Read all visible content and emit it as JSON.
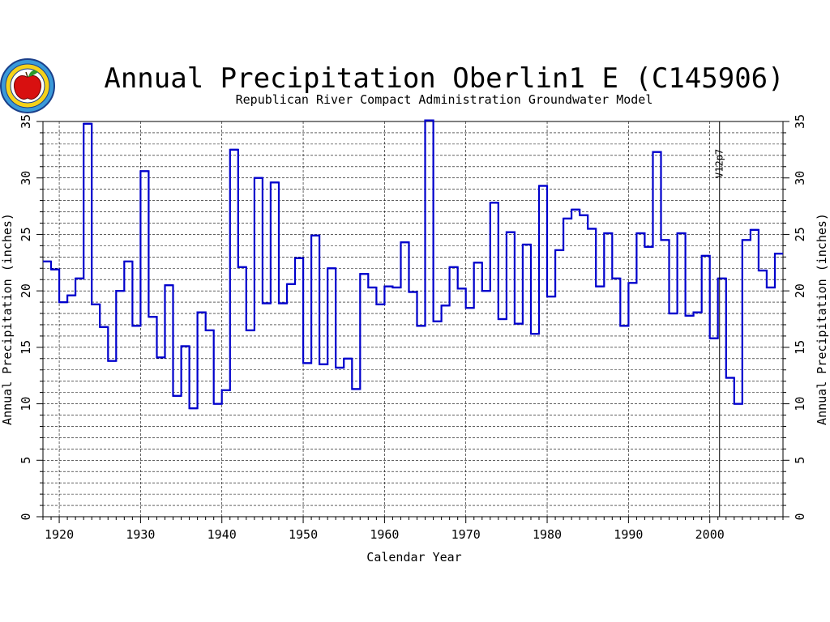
{
  "chart_data": {
    "type": "line",
    "step": true,
    "title": "Annual Precipitation Oberlin1 E (C145906)",
    "subtitle": "Republican River Compact Administration Groundwater Model",
    "xlabel": "Calendar Year",
    "ylabel": "Annual Precipitation (inches)",
    "xlim": [
      1918,
      2009
    ],
    "ylim": [
      0,
      35
    ],
    "x_ticks": [
      1920,
      1930,
      1940,
      1950,
      1960,
      1970,
      1980,
      1990,
      2000
    ],
    "y_ticks": [
      0,
      5,
      10,
      15,
      20,
      25,
      30,
      35
    ],
    "grid": true,
    "series_color": "#0000cc",
    "annotation": {
      "label": "V12p7",
      "x": 2001
    },
    "years": [
      1918,
      1919,
      1920,
      1921,
      1922,
      1923,
      1924,
      1925,
      1926,
      1927,
      1928,
      1929,
      1930,
      1931,
      1932,
      1933,
      1934,
      1935,
      1936,
      1937,
      1938,
      1939,
      1940,
      1941,
      1942,
      1943,
      1944,
      1945,
      1946,
      1947,
      1948,
      1949,
      1950,
      1951,
      1952,
      1953,
      1954,
      1955,
      1956,
      1957,
      1958,
      1959,
      1960,
      1961,
      1962,
      1963,
      1964,
      1965,
      1966,
      1967,
      1968,
      1969,
      1970,
      1971,
      1972,
      1973,
      1974,
      1975,
      1976,
      1977,
      1978,
      1979,
      1980,
      1981,
      1982,
      1983,
      1984,
      1985,
      1986,
      1987,
      1988,
      1989,
      1990,
      1991,
      1992,
      1993,
      1994,
      1995,
      1996,
      1997,
      1998,
      1999,
      2000,
      2001,
      2002,
      2003,
      2004,
      2005,
      2006,
      2007,
      2008
    ],
    "values": [
      22.6,
      21.9,
      19.0,
      19.6,
      21.1,
      34.8,
      18.8,
      16.8,
      13.8,
      20.0,
      22.6,
      16.9,
      30.6,
      17.7,
      14.1,
      20.5,
      10.7,
      15.1,
      9.6,
      18.1,
      16.5,
      10.0,
      11.2,
      32.5,
      22.1,
      16.5,
      30.0,
      18.9,
      29.6,
      18.9,
      20.6,
      22.9,
      13.6,
      24.9,
      13.5,
      22.0,
      13.2,
      14.0,
      11.3,
      21.5,
      20.3,
      18.8,
      20.4,
      20.3,
      24.3,
      19.9,
      16.9,
      35.1,
      17.3,
      18.7,
      22.1,
      20.2,
      18.5,
      22.5,
      20.0,
      27.8,
      17.5,
      25.2,
      17.1,
      24.1,
      16.2,
      29.3,
      19.5,
      23.6,
      26.4,
      27.2,
      26.7,
      25.5,
      20.4,
      25.1,
      21.1,
      16.9,
      20.7,
      25.1,
      23.9,
      32.3,
      24.5,
      18.0,
      25.1,
      17.8,
      18.1,
      23.1,
      15.8,
      21.1,
      12.3,
      10.0,
      24.5,
      25.4,
      21.8,
      20.3,
      23.3
    ]
  },
  "logo": {
    "name": "Kansas apple seal"
  },
  "colors": {
    "series": "#0000cc",
    "axis": "#000000",
    "grid": "#000000"
  }
}
